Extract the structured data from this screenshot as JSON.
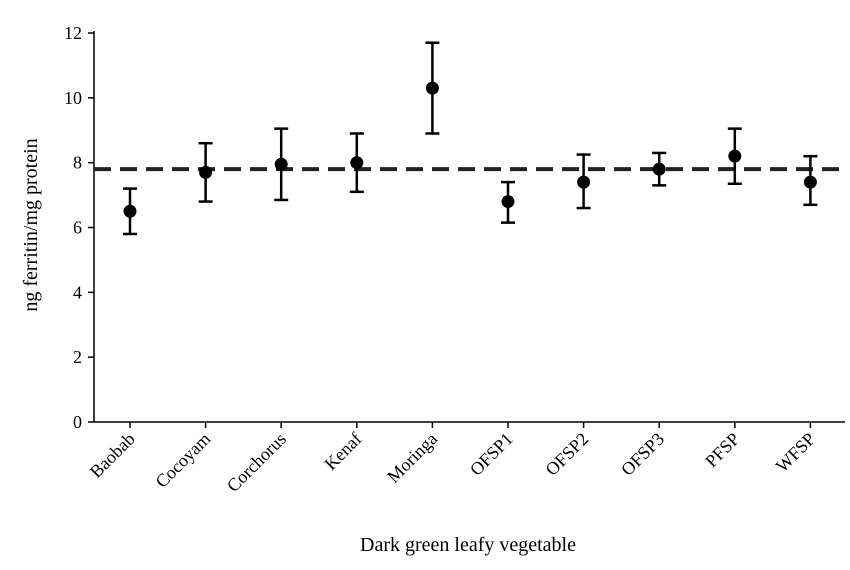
{
  "chart_data": {
    "type": "scatter",
    "xlabel": "Dark green leafy vegetable",
    "ylabel": "ng ferritin/mg protein",
    "ylim": [
      0,
      12
    ],
    "yticks": [
      0,
      2,
      4,
      6,
      8,
      10,
      12
    ],
    "categories": [
      "Baobab",
      "Cocoyam",
      "Corchorus",
      "Kenaf",
      "Moringa",
      "OFSP1",
      "OFSP2",
      "OFSP3",
      "PFSP",
      "WFSP"
    ],
    "values": [
      6.5,
      7.7,
      7.95,
      8.0,
      10.3,
      6.8,
      7.4,
      7.8,
      8.2,
      7.4
    ],
    "error_lower": [
      5.8,
      6.8,
      6.85,
      7.1,
      8.9,
      6.15,
      6.6,
      7.3,
      7.35,
      6.7
    ],
    "error_upper": [
      7.2,
      8.6,
      9.05,
      8.9,
      11.7,
      7.4,
      8.25,
      8.3,
      9.05,
      8.2
    ],
    "reference_line": 7.8,
    "grid": false,
    "marker_color": "#000000"
  }
}
